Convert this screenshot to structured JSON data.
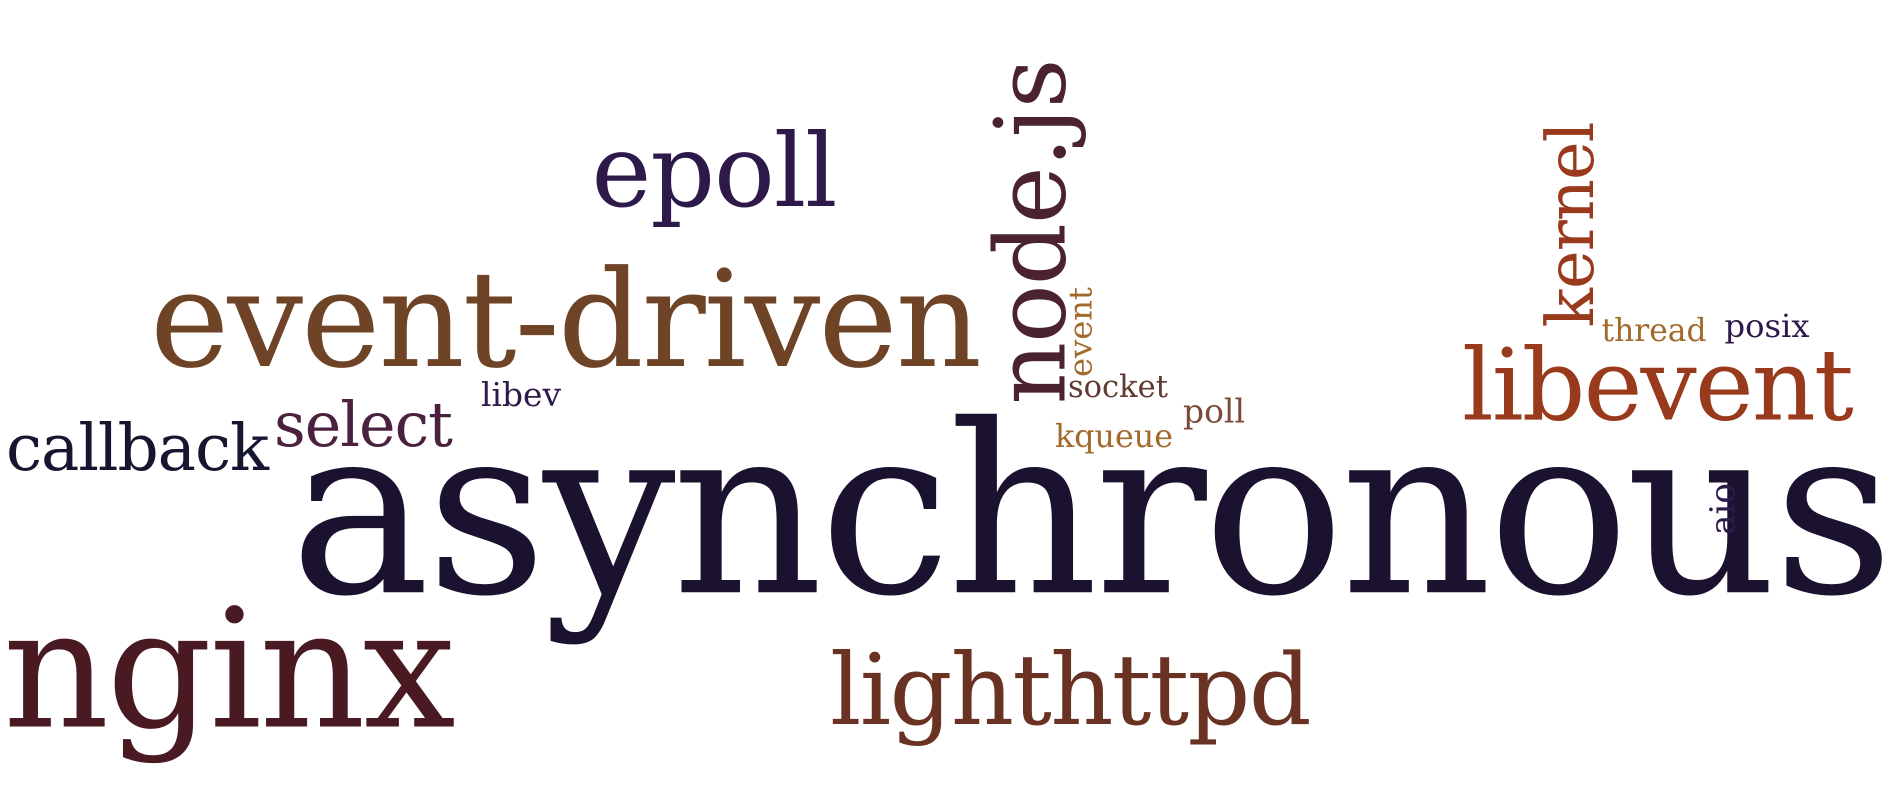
{
  "words": {
    "asynchronous": "asynchronous",
    "nginx": "nginx",
    "event_driven": "event-driven",
    "lighthttpd": "lighthttpd",
    "libevent": "libevent",
    "epoll": "epoll",
    "nodejs": "node.js",
    "kernel": "kernel",
    "callback": "callback",
    "select": "select",
    "socket": "socket",
    "kqueue": "kqueue",
    "thread": "thread",
    "posix": "posix",
    "poll": "poll",
    "event": "event",
    "libev": "libev",
    "aio": "aio"
  },
  "colors": {
    "asynchronous": "#1b1230",
    "nginx": "#4a1a22",
    "event_driven": "#6e4326",
    "lighthttpd": "#6a3222",
    "libevent": "#9a3a1c",
    "epoll": "#2e1a4a",
    "nodejs": "#4a2230",
    "kernel": "#9a3a1c",
    "callback": "#161630",
    "select": "#4a2240",
    "socket": "#5e3a30",
    "kqueue": "#a26a2a",
    "thread": "#a26a2a",
    "posix": "#2e1a4a",
    "poll": "#7a4a3a",
    "event": "#a26a2a",
    "libev": "#2e1a4a",
    "aio": "#2e1a4a"
  }
}
